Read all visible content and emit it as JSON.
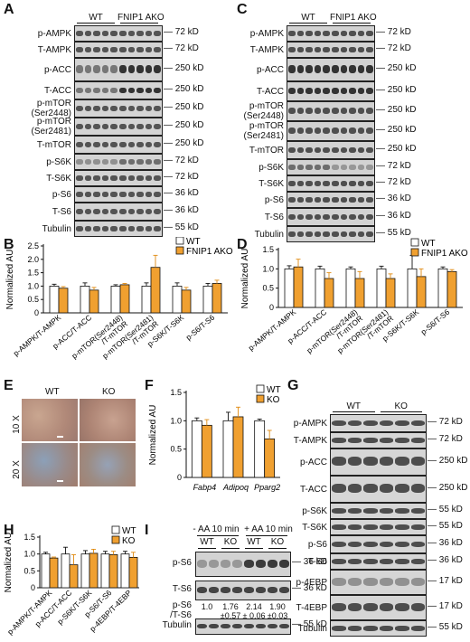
{
  "panels": {
    "A": {
      "letter": "A",
      "group_labels": [
        "WT",
        "FNIP1 AKO"
      ],
      "rows": [
        {
          "label": "p-AMPK",
          "kd": "72 kD"
        },
        {
          "label": "T-AMPK",
          "kd": "72 kD"
        },
        {
          "label": "p-ACC",
          "kd": "250 kD"
        },
        {
          "label": "T-ACC",
          "kd": "250 kD"
        },
        {
          "label": "p-mTOR\n(Ser2448)",
          "kd": "250 kD"
        },
        {
          "label": "p-mTOR\n(Ser2481)",
          "kd": "250 kD"
        },
        {
          "label": "T-mTOR",
          "kd": "250 kD"
        },
        {
          "label": "p-S6K",
          "kd": "72 kD"
        },
        {
          "label": "T-S6K",
          "kd": "72 kD"
        },
        {
          "label": "p-S6",
          "kd": "36 kD"
        },
        {
          "label": "T-S6",
          "kd": "36 kD"
        },
        {
          "label": "Tubulin",
          "kd": "55 kD"
        }
      ]
    },
    "C": {
      "letter": "C",
      "group_labels": [
        "WT",
        "FNIP1 AKO"
      ],
      "rows": [
        {
          "label": "p-AMPK",
          "kd": "72 kD"
        },
        {
          "label": "T-AMPK",
          "kd": "72 kD"
        },
        {
          "label": "p-ACC",
          "kd": "250 kD"
        },
        {
          "label": "T-ACC",
          "kd": "250 kD"
        },
        {
          "label": "p-mTOR\n(Ser2448)",
          "kd": "250 kD"
        },
        {
          "label": "p-mTOR\n(Ser2481)",
          "kd": "250 kD"
        },
        {
          "label": "T-mTOR",
          "kd": "250 kD"
        },
        {
          "label": "p-S6K",
          "kd": "72 kD"
        },
        {
          "label": "T-S6K",
          "kd": "72 kD"
        },
        {
          "label": "p-S6",
          "kd": "36 kD"
        },
        {
          "label": "T-S6",
          "kd": "36 kD"
        },
        {
          "label": "Tubulin",
          "kd": "55 kD"
        }
      ]
    },
    "E": {
      "letter": "E",
      "cols": [
        "WT",
        "KO"
      ],
      "rows": [
        "10 X",
        "20 X"
      ]
    },
    "G": {
      "letter": "G",
      "group_labels": [
        "WT",
        "KO"
      ],
      "rows": [
        {
          "label": "p-AMPK",
          "kd": "72 kD"
        },
        {
          "label": "T-AMPK",
          "kd": "72 kD"
        },
        {
          "label": "p-ACC",
          "kd": "250 kD"
        },
        {
          "label": "T-ACC",
          "kd": "250 kD"
        },
        {
          "label": "p-S6K",
          "kd": "55 kD"
        },
        {
          "label": "T-S6K",
          "kd": "55 kD"
        },
        {
          "label": "p-S6",
          "kd": "36 kD"
        },
        {
          "label": "T-S6",
          "kd": "36 kD"
        },
        {
          "label": "p-4EBP",
          "kd": "17 kD"
        },
        {
          "label": "T-4EBP",
          "kd": "17 kD"
        },
        {
          "label": "Tubulin",
          "kd": "55 kD"
        }
      ]
    },
    "I": {
      "letter": "I",
      "conditions": [
        "- AA 10 min",
        "+ AA 10 min"
      ],
      "group_labels": [
        "WT",
        "KO",
        "WT",
        "KO"
      ],
      "rows": [
        {
          "label": "p-S6",
          "kd": "36 kD"
        },
        {
          "label": "T-S6",
          "kd": "36 kD"
        },
        {
          "label": "Tubulin",
          "kd": "55 kD"
        }
      ],
      "ratio_label": "p-S6\n/T-S6",
      "ratios": [
        "1.0",
        "1.76\n±0.57",
        "2.14\n± 0.06",
        "1.90\n±0.03"
      ]
    }
  },
  "chart_data": [
    {
      "panel": "B",
      "type": "bar",
      "ylabel": "Normalized AU",
      "ylim": [
        0,
        2.5
      ],
      "yticks": [
        "0",
        "0.5",
        "1.0",
        "1.5",
        "2.0",
        "2.5"
      ],
      "categories": [
        "p-AMPK/T-AMPK",
        "p-ACC/T-ACC",
        "p-mTOR(Ser2448)\n/T-mTOR",
        "p-mTOR(Ser2481)\n/T-mTOR",
        "p-S6K/T-S6K",
        "p-S6/T-S6"
      ],
      "legend": [
        "WT",
        "FNIP1 AKO"
      ],
      "series": [
        {
          "name": "WT",
          "color": "#ffffff",
          "values": [
            1.0,
            1.0,
            1.0,
            1.0,
            1.0,
            1.0
          ],
          "errors": [
            0.07,
            0.12,
            0.05,
            0.12,
            0.12,
            0.1
          ]
        },
        {
          "name": "FNIP1 AKO",
          "color": "#f0a030",
          "values": [
            0.92,
            0.85,
            1.05,
            1.7,
            0.85,
            1.1
          ],
          "errors": [
            0.06,
            0.1,
            0.05,
            0.45,
            0.1,
            0.12
          ]
        }
      ]
    },
    {
      "panel": "D",
      "type": "bar",
      "ylabel": "Normalized AU",
      "ylim": [
        0,
        1.5
      ],
      "yticks": [
        "0",
        "0.5",
        "1.0",
        "1.5"
      ],
      "categories": [
        "p-AMPK/T-AMPK",
        "p-ACC/T-ACC",
        "p-mTOR(Ser2448)\n/T-mTOR",
        "p-mTOR(Ser2481)\n/T-mTOR",
        "p-S6K/T-S6K",
        "p-S6/T-S6"
      ],
      "legend": [
        "WT",
        "FNIP1 AKO"
      ],
      "series": [
        {
          "name": "WT",
          "color": "#ffffff",
          "values": [
            1.0,
            1.0,
            1.0,
            1.0,
            1.0,
            1.0
          ],
          "errors": [
            0.08,
            0.07,
            0.05,
            0.07,
            0.35,
            0.05
          ]
        },
        {
          "name": "FNIP1 AKO",
          "color": "#f0a030",
          "values": [
            1.05,
            0.75,
            0.75,
            0.75,
            0.8,
            0.93
          ],
          "errors": [
            0.2,
            0.15,
            0.18,
            0.12,
            0.2,
            0.05
          ]
        }
      ]
    },
    {
      "panel": "F",
      "type": "bar",
      "ylabel": "Normalized AU",
      "ylim": [
        0,
        1.5
      ],
      "yticks": [
        "0",
        "0.5",
        "1.0",
        "1.5"
      ],
      "categories": [
        "Fabp4",
        "Adipoq",
        "Pparg2"
      ],
      "legend": [
        "WT",
        "KO"
      ],
      "series": [
        {
          "name": "WT",
          "color": "#ffffff",
          "values": [
            1.0,
            1.0,
            1.0
          ],
          "errors": [
            0.05,
            0.15,
            0.03
          ]
        },
        {
          "name": "KO",
          "color": "#f0a030",
          "values": [
            0.92,
            1.07,
            0.68
          ],
          "errors": [
            0.1,
            0.17,
            0.15
          ]
        }
      ]
    },
    {
      "panel": "H",
      "type": "bar",
      "ylabel": "Normalized AU",
      "ylim": [
        0,
        1.5
      ],
      "yticks": [
        "0",
        "0.5",
        "1.0",
        "1.5"
      ],
      "categories": [
        "p-AMPK/T-AMPK",
        "p-ACC/T-ACC",
        "p-S6K/T-S6K",
        "p-S6/T-S6",
        "p-4EBP/T-4EBP"
      ],
      "legend": [
        "WT",
        "KO"
      ],
      "series": [
        {
          "name": "WT",
          "color": "#ffffff",
          "values": [
            1.0,
            1.0,
            1.0,
            1.0,
            1.0
          ],
          "errors": [
            0.05,
            0.2,
            0.1,
            0.08,
            0.08
          ]
        },
        {
          "name": "KO",
          "color": "#f0a030",
          "values": [
            0.88,
            0.68,
            1.02,
            0.98,
            0.9
          ],
          "errors": [
            0.03,
            0.3,
            0.12,
            0.1,
            0.15
          ]
        }
      ]
    }
  ],
  "letters": {
    "B": "B",
    "D": "D",
    "F": "F",
    "H": "H"
  }
}
